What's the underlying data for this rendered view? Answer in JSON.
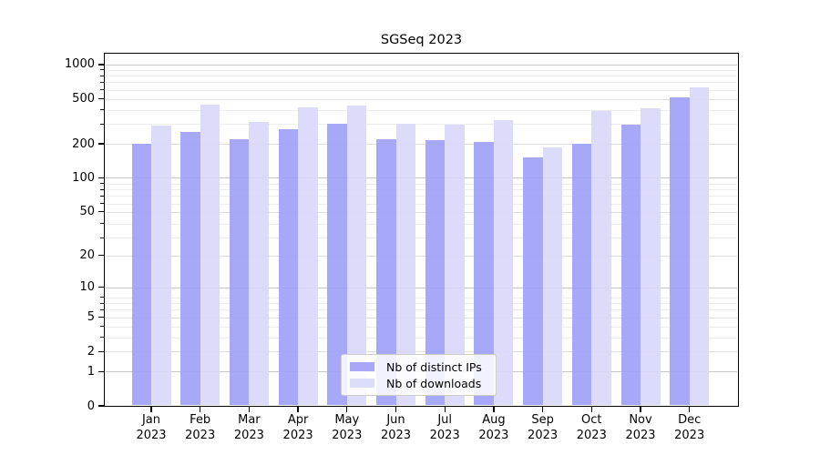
{
  "chart_data": {
    "type": "bar",
    "title": "SGSeq 2023",
    "categories": [
      "Jan 2023",
      "Feb 2023",
      "Mar 2023",
      "Apr 2023",
      "May 2023",
      "Jun 2023",
      "Jul 2023",
      "Aug 2023",
      "Sep 2023",
      "Oct 2023",
      "Nov 2023",
      "Dec 2023"
    ],
    "series": [
      {
        "name": "Nb of distinct IPs",
        "color": "#a8a8f6",
        "values": [
          202,
          255,
          220,
          270,
          300,
          220,
          216,
          208,
          152,
          202,
          295,
          515
        ]
      },
      {
        "name": "Nb of downloads",
        "color": "#dcdcfb",
        "values": [
          290,
          440,
          315,
          417,
          438,
          300,
          298,
          324,
          186,
          390,
          415,
          628
        ]
      }
    ],
    "y_scale": "log1p",
    "y_ticks": [
      0,
      1,
      2,
      5,
      10,
      20,
      50,
      100,
      200,
      500,
      1000
    ],
    "y_tick_labels": [
      "0",
      "1",
      "2",
      "5",
      "10",
      "20",
      "50",
      "100",
      "200",
      "500",
      "1000"
    ],
    "ylim": [
      0,
      1220
    ],
    "xlabel": "",
    "ylabel": "",
    "grid": true,
    "legend_position": "inside-bottom-center"
  },
  "legend": {
    "items": [
      {
        "label": "Nb of distinct IPs",
        "color": "#a8a8f6"
      },
      {
        "label": "Nb of downloads",
        "color": "#dcdcfb"
      }
    ]
  },
  "colors": {
    "bar_ips_fill": "rgba(158,158,247,0.9)",
    "bar_downloads_fill": "rgba(216,216,250,0.9)",
    "grid_major": "#c8c8c8",
    "grid_mid": "#dedede",
    "grid_minor": "#ededed",
    "axis": "#000000",
    "background": "#ffffff"
  }
}
